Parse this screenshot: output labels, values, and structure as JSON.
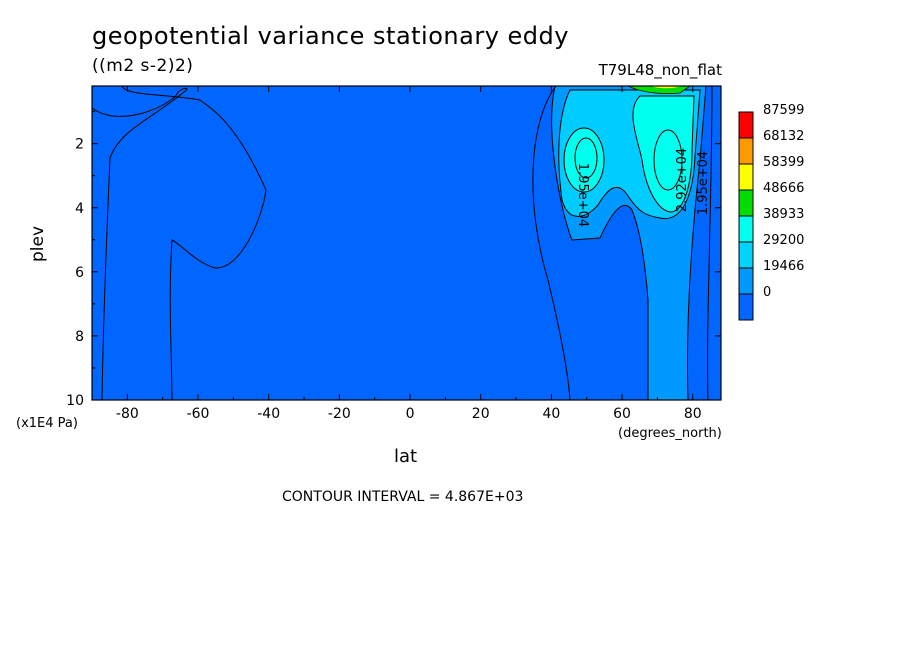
{
  "chart_data": {
    "type": "contour",
    "title": "geopotential variance stationary eddy",
    "units": "((m2 s-2)2)",
    "run_label": "T79L48_non_flat",
    "xlabel": "lat",
    "x_units": "(degrees_north)",
    "ylabel": "plev",
    "y_units": "(x1E4 Pa)",
    "xlim": [
      -90,
      88
    ],
    "ylim": [
      0.2,
      10
    ],
    "x_ticks": [
      -80,
      -60,
      -40,
      -20,
      0,
      20,
      40,
      60,
      80
    ],
    "y_ticks": [
      2,
      4,
      6,
      8,
      10
    ],
    "contour_interval_text": "CONTOUR INTERVAL = 4.867E+03",
    "contour_labels": [
      "1.95e+04",
      "2.92e+04",
      "1.95e+04"
    ],
    "colorbar": {
      "levels": [
        87599,
        68132,
        58399,
        48666,
        38933,
        29200,
        19466,
        0
      ],
      "colors": [
        "#ff0000",
        "#ff9900",
        "#ffff00",
        "#00dd00",
        "#00ffee",
        "#00d4ff",
        "#0099ff",
        "#0066ff"
      ]
    }
  }
}
